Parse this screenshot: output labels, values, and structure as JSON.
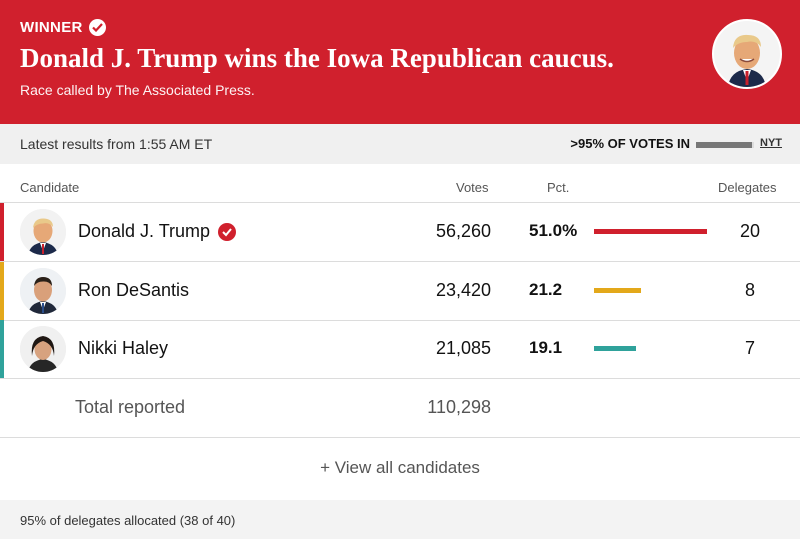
{
  "banner": {
    "winner_label": "WINNER",
    "headline": "Donald J. Trump wins the Iowa Republican caucus.",
    "subline": "Race called by The Associated Press.",
    "background": "#d0202d"
  },
  "status": {
    "latest": "Latest results from 1:55 AM ET",
    "votes_in": ">95% OF VOTES IN",
    "votes_in_fraction": 0.96,
    "source_link": "NYT"
  },
  "table": {
    "headers": {
      "candidate": "Candidate",
      "votes": "Votes",
      "pct": "Pct.",
      "delegates": "Delegates"
    },
    "rows": [
      {
        "name": "Donald J. Trump",
        "votes": "56,260",
        "pct": "51.0%",
        "pct_value": 51.0,
        "delegates": "20",
        "color": "#d0202d",
        "winner": true
      },
      {
        "name": "Ron DeSantis",
        "votes": "23,420",
        "pct": "21.2",
        "pct_value": 21.2,
        "delegates": "8",
        "color": "#e3a81a",
        "winner": false
      },
      {
        "name": "Nikki Haley",
        "votes": "21,085",
        "pct": "19.1",
        "pct_value": 19.1,
        "delegates": "7",
        "color": "#2fa29b",
        "winner": false
      }
    ],
    "total_label": "Total reported",
    "total_votes": "110,298"
  },
  "view_all": "+ View all candidates",
  "footnote": "95% of delegates allocated (38 of 40)"
}
